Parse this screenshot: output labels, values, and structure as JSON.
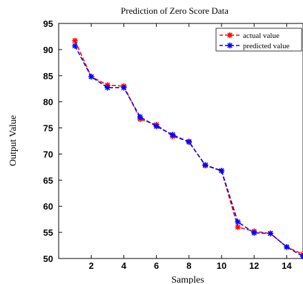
{
  "chart_data": {
    "type": "line",
    "title": "Prediction of Zero Score Data",
    "xlabel": "Samples",
    "ylabel": "Output Value",
    "xlim": [
      0,
      15
    ],
    "ylim": [
      50,
      95
    ],
    "xticks": [
      2,
      4,
      6,
      8,
      10,
      12,
      14
    ],
    "yticks": [
      50,
      55,
      60,
      65,
      70,
      75,
      80,
      85,
      90,
      95
    ],
    "x": [
      1,
      2,
      3,
      4,
      5,
      6,
      7,
      8,
      9,
      10,
      11,
      12,
      13,
      14,
      15
    ],
    "series": [
      {
        "name": "actual value",
        "color": "#ff0000",
        "values": [
          91.7,
          84.8,
          83.2,
          83.0,
          76.7,
          75.6,
          73.4,
          72.4,
          67.8,
          66.8,
          56.0,
          55.2,
          54.8,
          52.2,
          50.8
        ]
      },
      {
        "name": "predicted value",
        "color": "#0000ff",
        "values": [
          90.7,
          84.8,
          82.7,
          82.7,
          77.1,
          75.3,
          73.7,
          72.3,
          67.9,
          66.8,
          57.0,
          54.9,
          54.8,
          52.2,
          50.4
        ]
      }
    ],
    "legend_position": "top-right",
    "grid": false
  }
}
